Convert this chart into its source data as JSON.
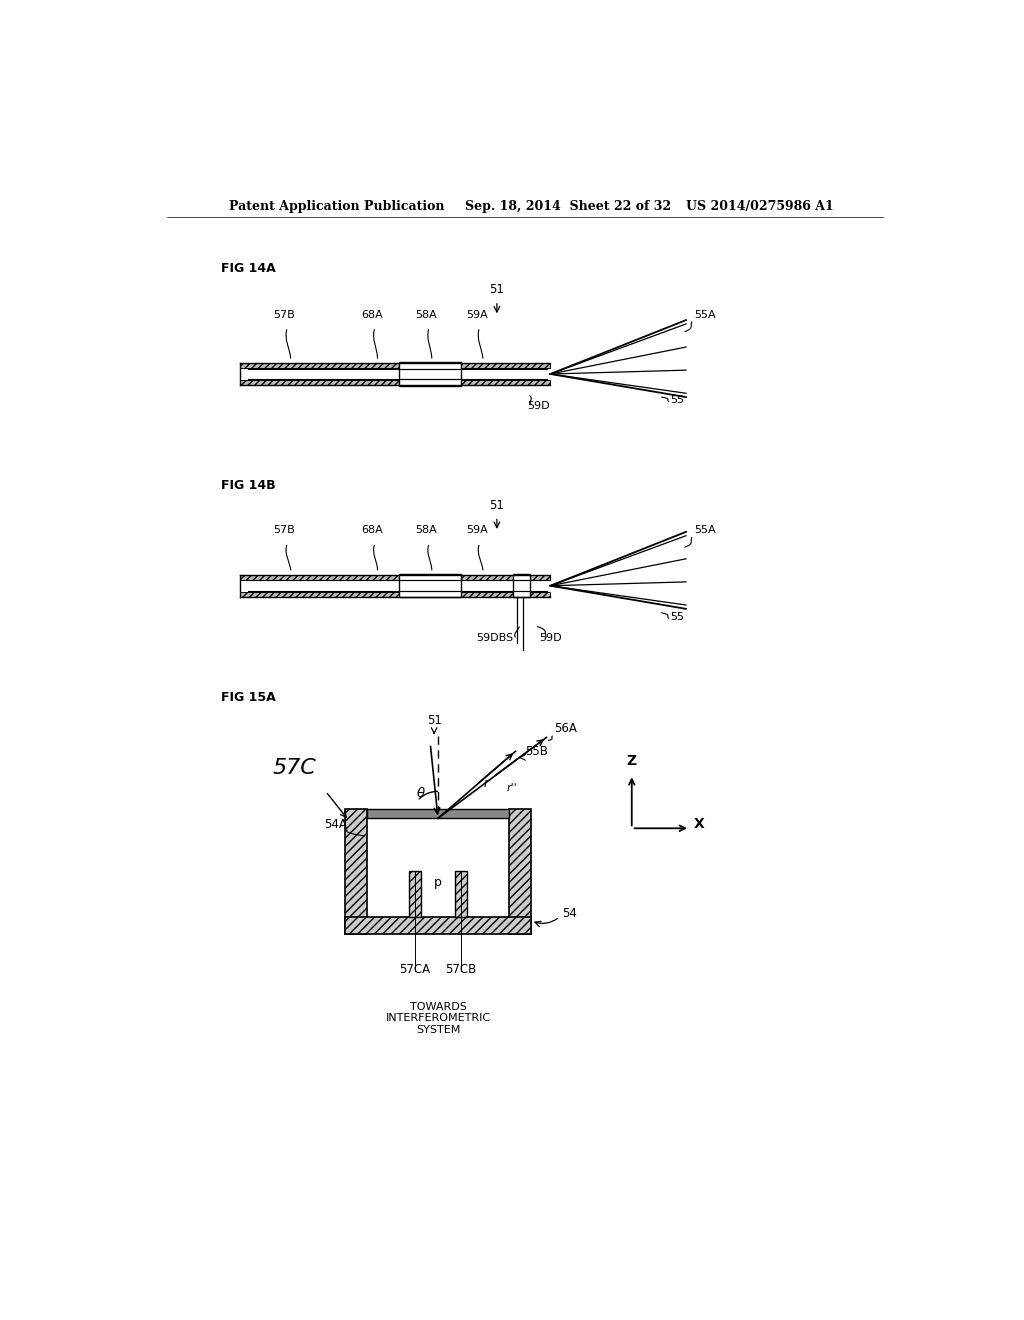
{
  "bg_color": "#ffffff",
  "text_color": "#000000",
  "header_line1": "Patent Application Publication",
  "header_line2": "Sep. 18, 2014  Sheet 22 of 32",
  "header_line3": "US 2014/0275986 A1",
  "fig14a_label": "FIG 14A",
  "fig14b_label": "FIG 14B",
  "fig15a_label": "FIG 15A",
  "line_color": "#000000",
  "hatch_color": "#888888"
}
